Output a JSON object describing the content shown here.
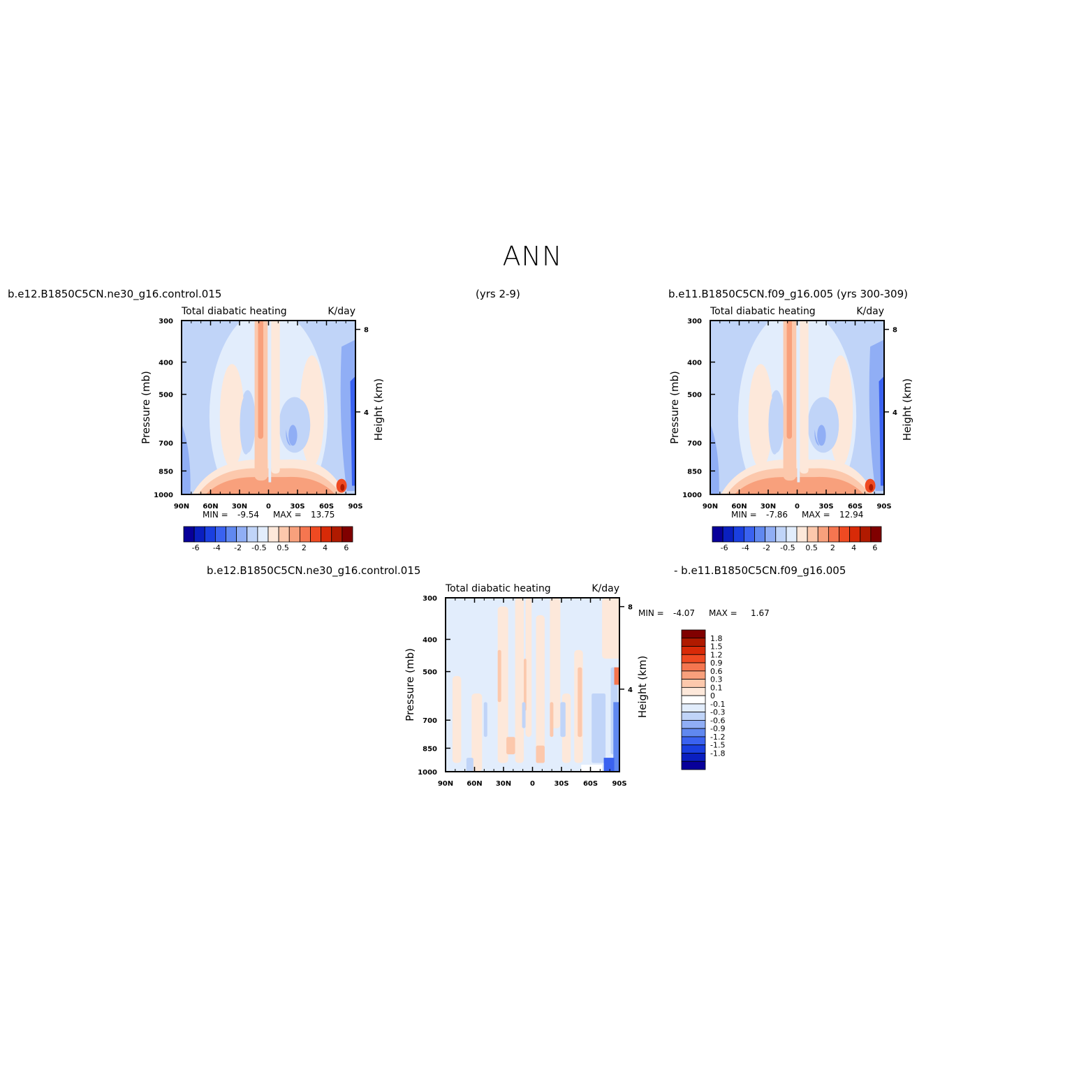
{
  "page": {
    "title": "ANN"
  },
  "headers": {
    "left_case": "b.e12.B1850C5CN.ne30_g16.control.015",
    "left_years": "(yrs 2-9)",
    "right_case": "b.e11.B1850C5CN.f09_g16.005 (yrs 300-309)",
    "diff_case1": "b.e12.B1850C5CN.ne30_g16.control.015",
    "diff_case2": "- b.e11.B1850C5CN.f09_g16.005"
  },
  "chart_data": [
    {
      "id": "panel-left",
      "type": "heatmap",
      "title": "Total diabatic heating",
      "units": "K/day",
      "ylabel": "Pressure (mb)",
      "ylabel_right": "Height (km)",
      "x_ticks": [
        "90N",
        "60N",
        "30N",
        "0",
        "30S",
        "60S",
        "90S"
      ],
      "y_ticks": [
        "300",
        "400",
        "500",
        "700",
        "850",
        "1000"
      ],
      "y_right_ticks": [
        "8",
        "4"
      ],
      "min_label": "MIN =",
      "min": "-9.54",
      "max_label": "MAX =",
      "max": "13.75",
      "colorbar_labels": [
        "-6",
        "-4",
        "-2",
        "-0.5",
        "0.5",
        "2",
        "4",
        "6"
      ]
    },
    {
      "id": "panel-right",
      "type": "heatmap",
      "title": "Total diabatic heating",
      "units": "K/day",
      "ylabel": "Pressure (mb)",
      "ylabel_right": "Height (km)",
      "x_ticks": [
        "90N",
        "60N",
        "30N",
        "0",
        "30S",
        "60S",
        "90S"
      ],
      "y_ticks": [
        "300",
        "400",
        "500",
        "700",
        "850",
        "1000"
      ],
      "y_right_ticks": [
        "8",
        "4"
      ],
      "min_label": "MIN =",
      "min": "-7.86",
      "max_label": "MAX =",
      "max": "12.94",
      "colorbar_labels": [
        "-6",
        "-4",
        "-2",
        "-0.5",
        "0.5",
        "2",
        "4",
        "6"
      ]
    },
    {
      "id": "panel-diff",
      "type": "heatmap",
      "title": "Total diabatic heating",
      "units": "K/day",
      "ylabel": "Pressure (mb)",
      "ylabel_right": "Height (km)",
      "x_ticks": [
        "90N",
        "60N",
        "30N",
        "0",
        "30S",
        "60S",
        "90S"
      ],
      "y_ticks": [
        "300",
        "400",
        "500",
        "700",
        "850",
        "1000"
      ],
      "y_right_ticks": [
        "8",
        "4"
      ],
      "min_label": "MIN =",
      "min": "-4.07",
      "max_label": "MAX =",
      "max": "1.67",
      "colorbar_labels": [
        "1.8",
        "1.5",
        "1.2",
        "0.9",
        "0.6",
        "0.3",
        "0.1",
        "0",
        "-0.1",
        "-0.3",
        "-0.6",
        "-0.9",
        "-1.2",
        "-1.5",
        "-1.8"
      ]
    }
  ],
  "colors": {
    "colorbar_main": [
      "#08009a",
      "#0a1fc0",
      "#1a3fe0",
      "#3a62f0",
      "#6088f0",
      "#90aef5",
      "#c0d4f8",
      "#e2edfc",
      "#fde8da",
      "#fcc8ac",
      "#f8a07c",
      "#f57650",
      "#ef4a22",
      "#d82a08",
      "#b01a00",
      "#800000"
    ],
    "colorbar_diff": [
      "#800000",
      "#b01a00",
      "#d82a08",
      "#ef4a22",
      "#f57650",
      "#f8a07c",
      "#fcc8ac",
      "#fde8da",
      "#ffffff",
      "#e2edfc",
      "#c0d4f8",
      "#90aef5",
      "#6088f0",
      "#3a62f0",
      "#1a3fe0",
      "#0a1fc0",
      "#08009a"
    ]
  }
}
